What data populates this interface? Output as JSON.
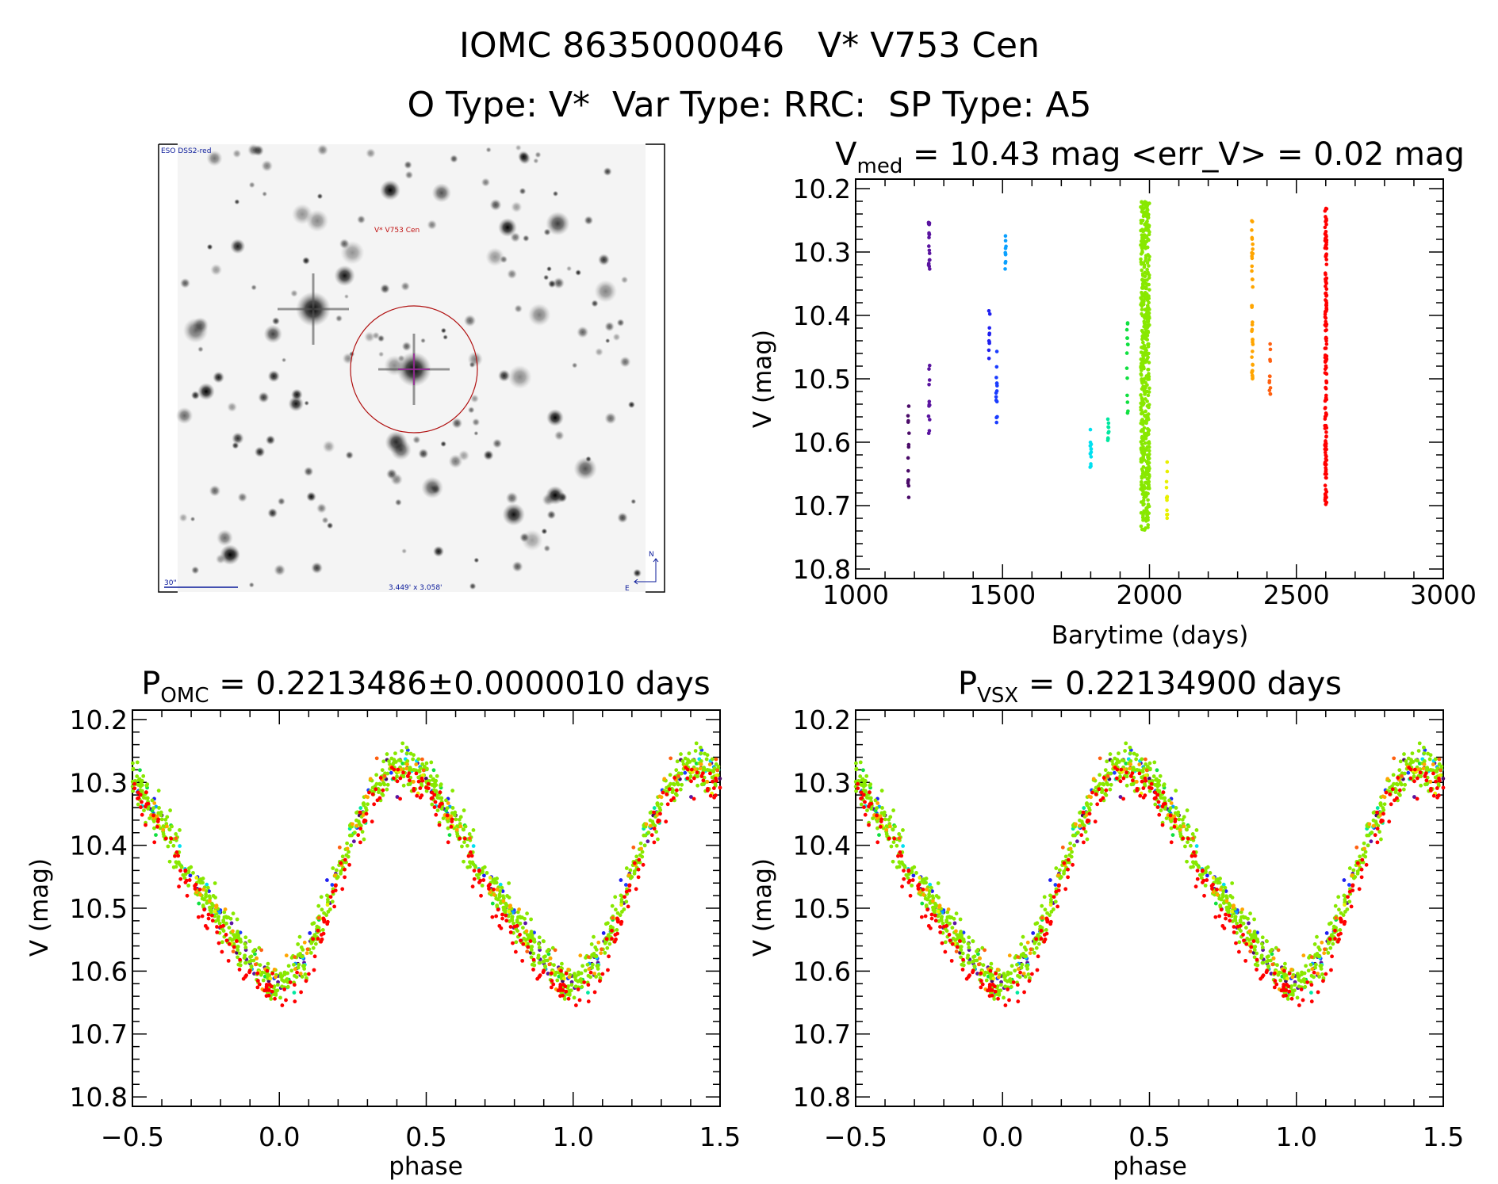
{
  "header": {
    "line1": "IOMC 8635000046   V* V753 Cen",
    "line2": "O Type: V*  Var Type: RRC:  SP Type: A5"
  },
  "finder": {
    "survey_label": "ESO DSS2-red",
    "target_label": "V* V753 Cen",
    "scale_label": "30\"",
    "fov_label": "3.449' x 3.058'",
    "north_label": "N",
    "east_label": "E",
    "circle_color": "#b01010",
    "cross_color": "#a020a0"
  },
  "chart_data": [
    {
      "type": "scatter",
      "title_main": "V",
      "title_sub": "med",
      "title_rest": " = 10.43 mag <err_V> = 0.02 mag",
      "xlabel": "Barytime (days)",
      "ylabel": "V (mag)",
      "xlim": [
        1000,
        3000
      ],
      "ylim": [
        10.815,
        10.185
      ],
      "y_inverted": true,
      "xticks": [
        "1000",
        "1500",
        "2000",
        "2500",
        "3000"
      ],
      "yticks": [
        "10.2",
        "10.3",
        "10.4",
        "10.5",
        "10.6",
        "10.7",
        "10.8"
      ],
      "groups": [
        {
          "t": 1180,
          "v_range": [
            10.54,
            10.7
          ],
          "n": 14,
          "color": "#4a0a68"
        },
        {
          "t": 1250,
          "v_range": [
            10.25,
            10.33
          ],
          "n": 18,
          "color": "#5a14a0"
        },
        {
          "t": 1250,
          "v_range": [
            10.46,
            10.59
          ],
          "n": 12,
          "color": "#5a14a0"
        },
        {
          "t": 1455,
          "v_range": [
            10.39,
            10.47
          ],
          "n": 10,
          "color": "#2020f0"
        },
        {
          "t": 1480,
          "v_range": [
            10.45,
            10.58
          ],
          "n": 14,
          "color": "#1a3cff"
        },
        {
          "t": 1510,
          "v_range": [
            10.27,
            10.33
          ],
          "n": 10,
          "color": "#0aa0ff"
        },
        {
          "t": 1800,
          "v_range": [
            10.58,
            10.65
          ],
          "n": 12,
          "color": "#00e0f0"
        },
        {
          "t": 1860,
          "v_range": [
            10.56,
            10.6
          ],
          "n": 10,
          "color": "#00e8a0"
        },
        {
          "t": 1925,
          "v_range": [
            10.4,
            10.56
          ],
          "n": 14,
          "color": "#10e040"
        },
        {
          "t": 1985,
          "v_range": [
            10.22,
            10.74
          ],
          "n": 500,
          "color": "#88e800"
        },
        {
          "t": 2060,
          "v_range": [
            10.63,
            10.72
          ],
          "n": 12,
          "color": "#e8f000"
        },
        {
          "t": 2350,
          "v_range": [
            10.25,
            10.5
          ],
          "n": 40,
          "color": "#ffa500"
        },
        {
          "t": 2410,
          "v_range": [
            10.44,
            10.53
          ],
          "n": 12,
          "color": "#ff6010"
        },
        {
          "t": 2600,
          "v_range": [
            10.23,
            10.7
          ],
          "n": 160,
          "color": "#ff0000"
        }
      ]
    },
    {
      "type": "scatter",
      "title_main": "P",
      "title_sub": "OMC",
      "title_rest": " = 0.2213486±0.0000010 days",
      "xlabel": "phase",
      "ylabel": "V (mag)",
      "xlim": [
        -0.5,
        1.5
      ],
      "ylim": [
        10.815,
        10.185
      ],
      "y_inverted": true,
      "xticks": [
        "−0.5",
        "0.0",
        "0.5",
        "1.0",
        "1.5"
      ],
      "yticks": [
        "10.2",
        "10.3",
        "10.4",
        "10.5",
        "10.6",
        "10.7",
        "10.8"
      ],
      "mean_curve": {
        "phase": [
          0.0,
          0.1,
          0.2,
          0.3,
          0.4,
          0.5,
          0.6,
          0.7,
          0.8,
          0.9,
          1.0
        ],
        "v": [
          10.63,
          10.57,
          10.45,
          10.32,
          10.27,
          10.29,
          10.37,
          10.45,
          10.52,
          10.58,
          10.63
        ]
      }
    },
    {
      "type": "scatter",
      "title_main": "P",
      "title_sub": "VSX",
      "title_rest": " = 0.22134900 days",
      "xlabel": "phase",
      "ylabel": "V (mag)",
      "xlim": [
        -0.5,
        1.5
      ],
      "ylim": [
        10.815,
        10.185
      ],
      "y_inverted": true,
      "xticks": [
        "−0.5",
        "0.0",
        "0.5",
        "1.0",
        "1.5"
      ],
      "yticks": [
        "10.2",
        "10.3",
        "10.4",
        "10.5",
        "10.6",
        "10.7",
        "10.8"
      ],
      "mean_curve": {
        "phase": [
          0.0,
          0.1,
          0.2,
          0.3,
          0.4,
          0.5,
          0.6,
          0.7,
          0.8,
          0.9,
          1.0
        ],
        "v": [
          10.63,
          10.57,
          10.45,
          10.32,
          10.27,
          10.29,
          10.37,
          10.45,
          10.52,
          10.58,
          10.63
        ]
      }
    }
  ]
}
